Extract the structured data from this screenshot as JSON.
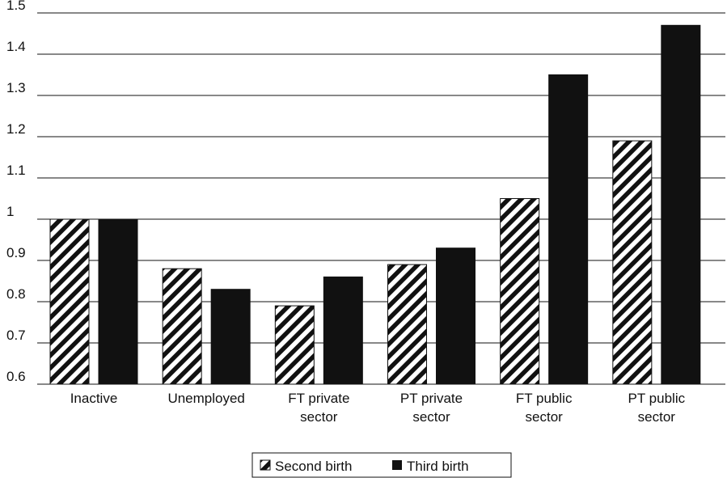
{
  "chart_data": {
    "type": "bar",
    "title": "",
    "xlabel": "",
    "ylabel": "",
    "ylim": [
      0.6,
      1.5
    ],
    "yticks": [
      "0.6",
      "0.7",
      "0.8",
      "0.9",
      "1",
      "1.1",
      "1.2",
      "1.3",
      "1.4",
      "1.5"
    ],
    "grid": true,
    "legend_position": "bottom",
    "categories": [
      [
        "Inactive"
      ],
      [
        "Unemployed"
      ],
      [
        "FT private",
        "sector"
      ],
      [
        "PT private",
        "sector"
      ],
      [
        "FT public",
        "sector"
      ],
      [
        "PT public",
        "sector"
      ]
    ],
    "series": [
      {
        "name": "Second birth",
        "pattern": "diagonal-hatch",
        "color": "#111111",
        "values": [
          1.0,
          0.88,
          0.79,
          0.89,
          1.05,
          1.19
        ]
      },
      {
        "name": "Third birth",
        "pattern": "solid",
        "color": "#111111",
        "values": [
          1.0,
          0.83,
          0.86,
          0.93,
          1.35,
          1.47
        ]
      }
    ]
  }
}
